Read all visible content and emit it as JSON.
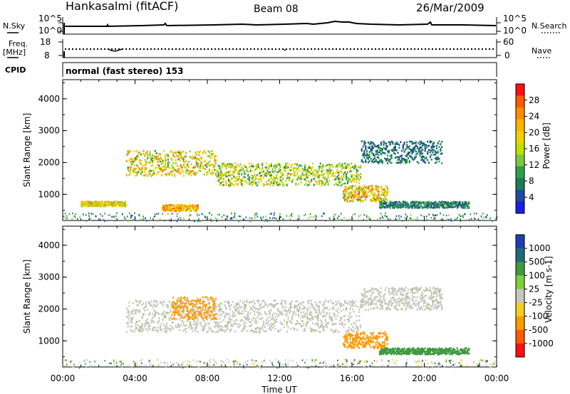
{
  "header": {
    "station": "Hankasalmi (fitACF)",
    "beam": "Beam 08",
    "date": "26/Mar/2009"
  },
  "noise_panel": {
    "left_label": "N.Sky",
    "right_label": "N.Search",
    "left_ticks": [
      "10^5",
      "10^0"
    ],
    "right_ticks": [
      "10^5",
      "10^0"
    ]
  },
  "freq_panel": {
    "left_label_1": "Freq.",
    "left_label_2": "[MHz]",
    "right_label": "Nave",
    "left_ticks": [
      "18",
      "8"
    ],
    "right_ticks": [
      "60",
      "0"
    ]
  },
  "cpid": {
    "label": "CPID",
    "value": "normal (fast stereo) 153"
  },
  "colorbars": {
    "power": {
      "label": "Power [dB]",
      "ticks": [
        "28",
        "24",
        "20",
        "16",
        "12",
        "8",
        "4"
      ],
      "colors": [
        "#ff1010",
        "#ff5a00",
        "#ff8c00",
        "#ffb300",
        "#f0d200",
        "#bfe000",
        "#7cc83c",
        "#2e9e4a",
        "#1f7a5a",
        "#1f4aa0",
        "#1a1ee0"
      ]
    },
    "velocity": {
      "label": "Velocity [m s-1]",
      "ticks": [
        "1000",
        "500",
        "100",
        "25",
        "-25",
        "-100",
        "-500",
        "-1000"
      ],
      "colors": [
        "#1f3fb0",
        "#1f6a78",
        "#3f9a40",
        "#7ccf3a",
        "#c8c8c0",
        "#f0d21e",
        "#ff9a00",
        "#ff5a00",
        "#ff1010"
      ]
    }
  },
  "chart_data": [
    {
      "type": "heatmap",
      "title": "",
      "quantity": "Power [dB]",
      "ylabel": "Slant Range [km]",
      "xlabel": "",
      "xlim": [
        "00:00",
        "24:00"
      ],
      "ylim": [
        180,
        4600
      ],
      "yticks": [
        "1000",
        "2000",
        "3000",
        "4000"
      ],
      "scatter_regions": [
        {
          "from": "03:30",
          "to": "08:30",
          "range_km": [
            1600,
            2400
          ],
          "power_db": [
            10,
            26
          ]
        },
        {
          "from": "08:30",
          "to": "16:30",
          "range_km": [
            1300,
            2000
          ],
          "power_db": [
            8,
            22
          ]
        },
        {
          "from": "16:30",
          "to": "21:00",
          "range_km": [
            2000,
            2700
          ],
          "power_db": [
            4,
            10
          ]
        },
        {
          "from": "15:30",
          "to": "18:00",
          "range_km": [
            800,
            1300
          ],
          "power_db": [
            10,
            28
          ]
        },
        {
          "from": "17:30",
          "to": "22:30",
          "range_km": [
            600,
            800
          ],
          "power_db": [
            4,
            12
          ]
        },
        {
          "from": "05:30",
          "to": "07:30",
          "range_km": [
            500,
            700
          ],
          "power_db": [
            16,
            28
          ]
        },
        {
          "from": "01:00",
          "to": "03:30",
          "range_km": [
            650,
            800
          ],
          "power_db": [
            12,
            24
          ]
        }
      ]
    },
    {
      "type": "heatmap",
      "title": "",
      "quantity": "Velocity [m s-1]",
      "ylabel": "Slant Range [km]",
      "xlabel": "Time UT",
      "xlim": [
        "00:00",
        "24:00"
      ],
      "ylim": [
        180,
        4600
      ],
      "yticks": [
        "1000",
        "2000",
        "3000",
        "4000"
      ],
      "xticks": [
        "00:00",
        "04:00",
        "08:00",
        "12:00",
        "16:00",
        "20:00",
        "00:00"
      ],
      "scatter_regions": [
        {
          "from": "03:30",
          "to": "16:30",
          "range_km": [
            1300,
            2300
          ],
          "velocity_ms": [
            -25,
            25
          ]
        },
        {
          "from": "06:00",
          "to": "08:30",
          "range_km": [
            1700,
            2400
          ],
          "velocity_ms": [
            -500,
            -100
          ]
        },
        {
          "from": "16:30",
          "to": "21:00",
          "range_km": [
            2000,
            2700
          ],
          "velocity_ms": [
            -25,
            25
          ]
        },
        {
          "from": "17:30",
          "to": "22:30",
          "range_km": [
            600,
            800
          ],
          "velocity_ms": [
            25,
            100
          ]
        },
        {
          "from": "15:30",
          "to": "18:00",
          "range_km": [
            800,
            1300
          ],
          "velocity_ms": [
            -500,
            -100
          ]
        }
      ]
    }
  ]
}
